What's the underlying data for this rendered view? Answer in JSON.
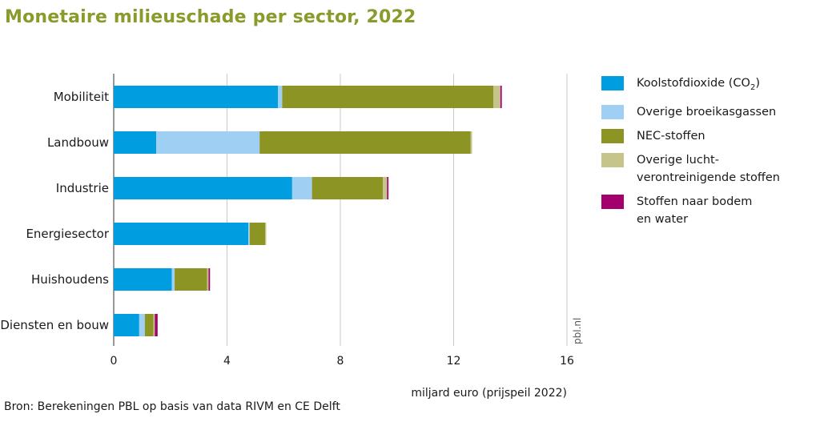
{
  "title": "Monetaire milieuschade per sector, 2022",
  "source": "Bron: Berekeningen PBL op basis van data RIVM en CE Delft",
  "credit": "pbl.nl",
  "chart_data": {
    "type": "bar",
    "orientation": "horizontal",
    "stacked": true,
    "categories": [
      "Mobiliteit",
      "Landbouw",
      "Industrie",
      "Energiesector",
      "Huishoudens",
      "Diensten en bouw"
    ],
    "series": [
      {
        "name": "Koolstofdioxide (CO2)",
        "label_main": "Koolstofdioxide (CO",
        "label_sub": "2",
        "label_tail": ")",
        "color": "#009ee0",
        "values": [
          5.8,
          1.5,
          6.3,
          4.75,
          2.05,
          0.9
        ]
      },
      {
        "name": "Overige broeikasgassen",
        "label_main": "Overige broeikasgassen",
        "color": "#9fd0f4",
        "values": [
          0.15,
          3.65,
          0.7,
          0.05,
          0.1,
          0.2
        ]
      },
      {
        "name": "NEC-stoffen",
        "label_main": "NEC-stoffen",
        "color": "#8c9424",
        "values": [
          7.45,
          7.45,
          2.5,
          0.55,
          1.15,
          0.3
        ]
      },
      {
        "name": "Overige luchtverontreinigende stoffen",
        "label_main": "Overige lucht-",
        "label_line2": "verontreinigende stoffen",
        "color": "#c5c48a",
        "values": [
          0.25,
          0.05,
          0.15,
          0.03,
          0.05,
          0.05
        ]
      },
      {
        "name": "Stoffen naar bodem en water",
        "label_main": "Stoffen naar bodem",
        "label_line2": "en water",
        "color": "#a3006e",
        "values": [
          0.05,
          0.0,
          0.05,
          0.0,
          0.05,
          0.1
        ]
      }
    ],
    "xlim": [
      0,
      16
    ],
    "xticks": [
      0,
      4,
      8,
      12,
      16
    ],
    "xlabel": "miljard euro (prijspeil 2022)",
    "ylabel": "",
    "grid": true,
    "legend_position": "right"
  }
}
